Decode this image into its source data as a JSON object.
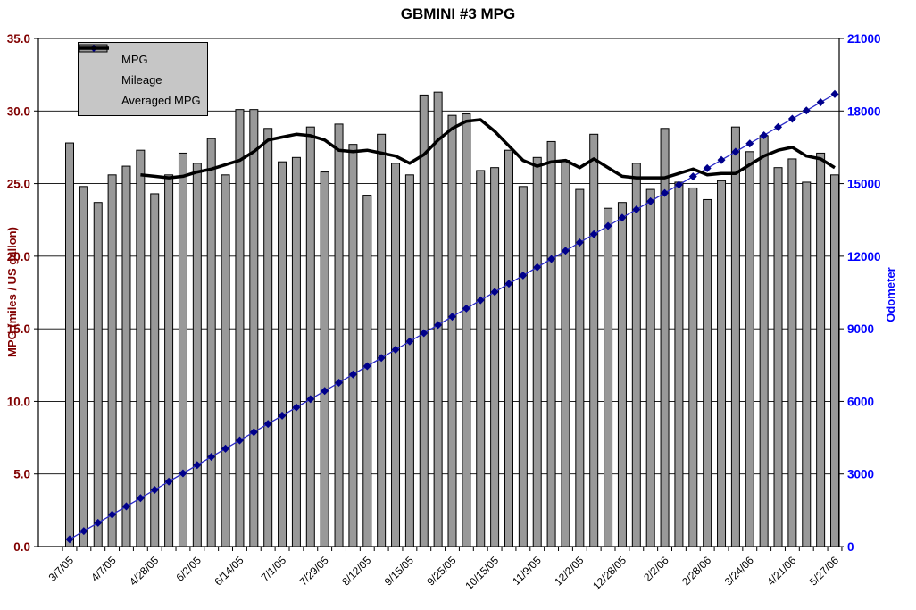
{
  "title": "GBMINI #3 MPG",
  "legend": {
    "items": [
      {
        "label": "MPG",
        "swatch": "bar"
      },
      {
        "label": "Mileage",
        "swatch": "line-diamond"
      },
      {
        "label": "Averaged MPG",
        "swatch": "line-thick"
      }
    ]
  },
  "chart_data": {
    "type": "combo-bar-line",
    "title": "GBMINI #3 MPG",
    "n_categories": 55,
    "x_tick_labels": [
      "3/7/05",
      "4/7/05",
      "4/28/05",
      "6/2/05",
      "6/14/05",
      "7/1/05",
      "7/29/05",
      "8/12/05",
      "9/15/05",
      "9/25/05",
      "10/15/05",
      "11/9/05",
      "12/2/05",
      "12/28/05",
      "2/2/06",
      "2/28/06",
      "3/24/06",
      "4/21/06",
      "5/27/06"
    ],
    "x_label_every": 3,
    "grid": true,
    "legend_position": "top-left-inside",
    "left_axis": {
      "label": "MPG (miles / US gallon)",
      "min": 0,
      "max": 35,
      "step": 5,
      "decimals": 1,
      "color": "#800000"
    },
    "right_axis": {
      "label": "Odometer",
      "min": 0,
      "max": 21000,
      "step": 3000,
      "decimals": 0,
      "color": "#0000FF"
    },
    "series": [
      {
        "name": "MPG",
        "type": "bar",
        "axis": "left",
        "fill": "#999999",
        "stroke": "#000000",
        "values": [
          27.8,
          24.8,
          23.7,
          25.6,
          26.2,
          27.3,
          24.3,
          25.6,
          27.1,
          26.4,
          28.1,
          25.6,
          30.1,
          30.1,
          28.8,
          26.5,
          26.8,
          28.9,
          25.8,
          29.1,
          27.7,
          24.2,
          28.4,
          26.4,
          25.6,
          31.1,
          31.3,
          29.7,
          29.8,
          25.9,
          26.1,
          27.3,
          24.8,
          26.8,
          27.9,
          26.6,
          24.6,
          28.4,
          23.3,
          23.7,
          26.4,
          24.6,
          28.8,
          25.1,
          24.7,
          23.9,
          25.2,
          28.9,
          27.2,
          28.3,
          26.1,
          26.7,
          25.1,
          27.1,
          25.6
        ]
      },
      {
        "name": "Mileage",
        "type": "line",
        "axis": "right",
        "color": "#2B2BC8",
        "marker": "diamond",
        "marker_color": "#00008B",
        "values": [
          300,
          641,
          981,
          1322,
          1663,
          2004,
          2344,
          2685,
          3026,
          3367,
          3707,
          4048,
          4389,
          4730,
          5070,
          5411,
          5752,
          6093,
          6433,
          6774,
          7115,
          7456,
          7796,
          8137,
          8478,
          8819,
          9159,
          9500,
          9841,
          10181,
          10522,
          10863,
          11204,
          11544,
          11885,
          12226,
          12567,
          12907,
          13248,
          13589,
          13930,
          14270,
          14611,
          14952,
          15293,
          15633,
          15974,
          16315,
          16656,
          16996,
          17337,
          17678,
          18019,
          18359,
          18700
        ]
      },
      {
        "name": "Averaged MPG",
        "type": "line",
        "axis": "left",
        "color": "#000000",
        "stroke_width": 3.5,
        "values": [
          null,
          null,
          null,
          null,
          null,
          25.6,
          25.5,
          25.4,
          25.5,
          25.8,
          26.0,
          26.3,
          26.6,
          27.2,
          28.0,
          28.2,
          28.4,
          28.3,
          28.0,
          27.3,
          27.2,
          27.3,
          27.1,
          26.9,
          26.4,
          27.0,
          28.0,
          28.8,
          29.3,
          29.4,
          28.6,
          27.6,
          26.6,
          26.2,
          26.5,
          26.6,
          26.1,
          26.7,
          26.1,
          25.5,
          25.4,
          25.4,
          25.4,
          25.7,
          26.0,
          25.6,
          25.7,
          25.7,
          26.3,
          26.9,
          27.3,
          27.5,
          26.9,
          26.7,
          26.1
        ]
      }
    ]
  }
}
